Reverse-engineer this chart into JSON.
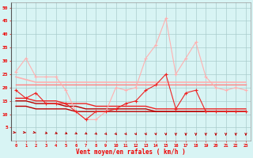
{
  "x": [
    0,
    1,
    2,
    3,
    4,
    5,
    6,
    7,
    8,
    9,
    10,
    11,
    12,
    13,
    14,
    15,
    16,
    17,
    18,
    19,
    20,
    21,
    22,
    23
  ],
  "line_rafales": [
    26,
    31,
    24,
    24,
    24,
    19,
    11,
    8,
    8,
    11,
    20,
    19,
    20,
    31,
    36,
    46,
    25,
    31,
    37,
    24,
    20,
    19,
    20,
    19
  ],
  "line_moyen": [
    19,
    16,
    18,
    14,
    14,
    14,
    11,
    8,
    11,
    11,
    12,
    14,
    15,
    19,
    21,
    25,
    12,
    18,
    19,
    11,
    11,
    11,
    11,
    11
  ],
  "trend1": [
    24,
    23,
    22,
    22,
    22,
    22,
    22,
    22,
    22,
    22,
    22,
    22,
    22,
    22,
    22,
    22,
    22,
    22,
    22,
    22,
    22,
    22,
    22,
    22
  ],
  "trend2": [
    21,
    21,
    21,
    21,
    21,
    21,
    21,
    21,
    21,
    21,
    21,
    21,
    21,
    21,
    21,
    21,
    21,
    21,
    21,
    21,
    21,
    21,
    21,
    21
  ],
  "trend3": [
    16,
    16,
    15,
    15,
    15,
    14,
    14,
    14,
    13,
    13,
    13,
    13,
    13,
    13,
    12,
    12,
    12,
    12,
    12,
    12,
    12,
    12,
    12,
    12
  ],
  "trend4": [
    15,
    15,
    14,
    14,
    14,
    13,
    13,
    12,
    12,
    12,
    12,
    12,
    12,
    12,
    11,
    11,
    11,
    11,
    11,
    11,
    11,
    11,
    11,
    11
  ],
  "trend5": [
    13,
    13,
    12,
    12,
    12,
    12,
    11,
    11,
    11,
    11,
    11,
    11,
    11,
    11,
    11,
    11,
    11,
    11,
    11,
    11,
    11,
    11,
    11,
    11
  ],
  "color_light_pink": "#FFB0B0",
  "color_pink": "#FF8080",
  "color_red": "#EE2222",
  "color_dark_red": "#BB0000",
  "background": "#D8F4F4",
  "grid_color": "#AACCCC",
  "text_color": "#EE0000",
  "xlabel": "Vent moyen/en rafales ( km/h )",
  "ylim": [
    0,
    52
  ],
  "xlim": [
    -0.5,
    23.5
  ],
  "yticks": [
    5,
    10,
    15,
    20,
    25,
    30,
    35,
    40,
    45,
    50
  ],
  "wind_angles": [
    10,
    10,
    15,
    20,
    25,
    30,
    35,
    40,
    45,
    55,
    60,
    65,
    70,
    75,
    80,
    85,
    90,
    90,
    90,
    90,
    90,
    90,
    90,
    90
  ]
}
